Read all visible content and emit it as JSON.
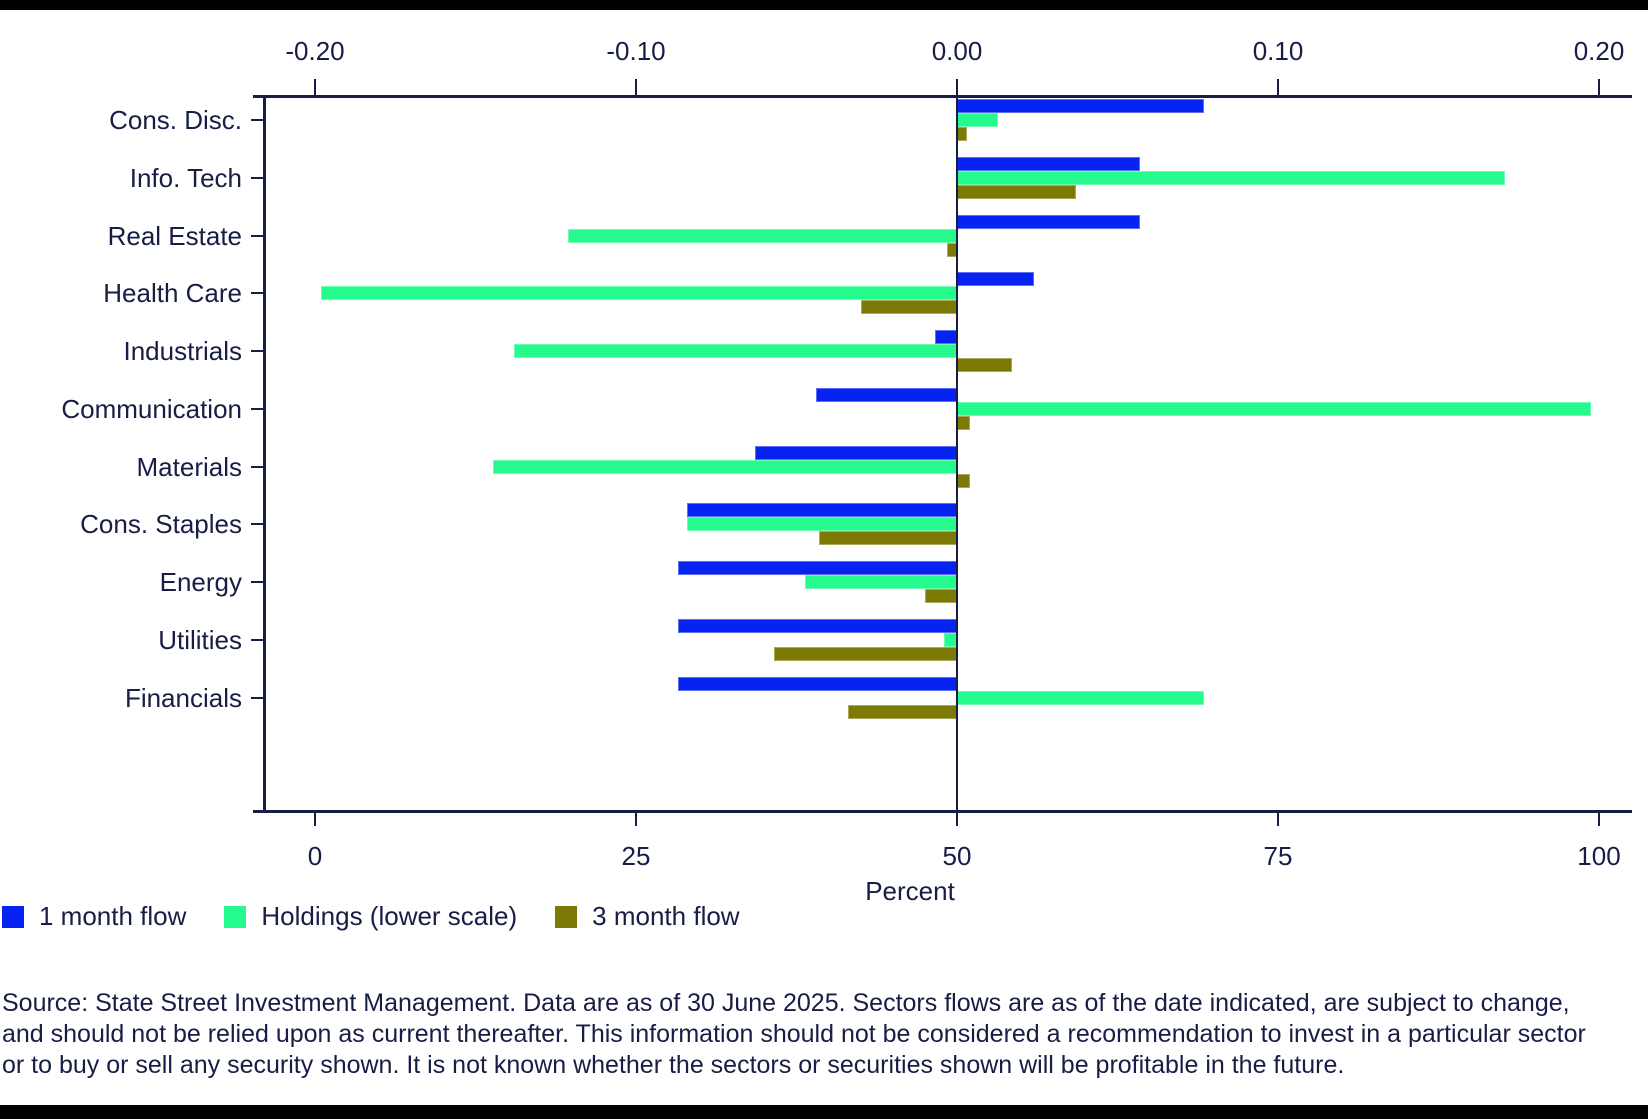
{
  "colors": {
    "navy": "#171d45",
    "blue": "#0623f2",
    "green": "#25fa8d",
    "olive": "#7c7a05",
    "background": "#ffffff",
    "letterbox": "#000000"
  },
  "chart_data": {
    "type": "bar",
    "orientation": "horizontal",
    "categories": [
      "Cons. Disc.",
      "Info. Tech",
      "Real Estate",
      "Health Care",
      "Industrials",
      "Communication",
      "Materials",
      "Cons. Staples",
      "Energy",
      "Utilities",
      "Financials"
    ],
    "series": [
      {
        "name": "1 month flow",
        "axis": "top",
        "color_key": "blue",
        "values": [
          0.077,
          0.057,
          0.057,
          0.024,
          -0.007,
          -0.044,
          -0.063,
          -0.084,
          -0.087,
          -0.087,
          -0.087
        ]
      },
      {
        "name": "Holdings (lower scale)",
        "axis": "bottom",
        "color_key": "green",
        "anchor": 50,
        "values": [
          53.2,
          92.7,
          19.7,
          0.5,
          15.5,
          99.4,
          13.9,
          29.0,
          38.2,
          49.0,
          69.2
        ]
      },
      {
        "name": "3 month flow",
        "axis": "top",
        "color_key": "olive",
        "values": [
          0.003,
          0.037,
          -0.003,
          -0.03,
          0.017,
          0.004,
          0.004,
          -0.043,
          -0.01,
          -0.057,
          -0.034
        ]
      }
    ],
    "top_axis": {
      "tick_labels": [
        "-0.20",
        "-0.10",
        "0.00",
        "0.10",
        "0.20"
      ],
      "tick_values": [
        -0.2,
        -0.1,
        0.0,
        0.1,
        0.2
      ],
      "range": [
        -0.216,
        0.212
      ]
    },
    "bottom_axis": {
      "tick_labels": [
        "0",
        "25",
        "50",
        "75",
        "100"
      ],
      "tick_values": [
        0,
        25,
        50,
        75,
        100
      ],
      "range": [
        -4,
        103
      ],
      "title": "Percent"
    },
    "xlabel": "Percent",
    "grid": false,
    "zero_line": true,
    "legend_position": "bottom-left"
  },
  "legend": {
    "items": [
      {
        "label": "1 month flow",
        "color_key": "blue"
      },
      {
        "label": "Holdings (lower scale)",
        "color_key": "green"
      },
      {
        "label": "3 month flow",
        "color_key": "olive"
      }
    ]
  },
  "footnote": {
    "lines": [
      "Source: State Street Investment Management. Data are as of 30 June 2025. Sectors flows are as of the date indicated, are subject to change,",
      "and should not be relied upon as current thereafter. This information should not be considered a recommendation to invest in a particular sector",
      "or to buy or sell any security shown. It is not known whether the sectors or securities shown will be profitable in the future."
    ]
  }
}
